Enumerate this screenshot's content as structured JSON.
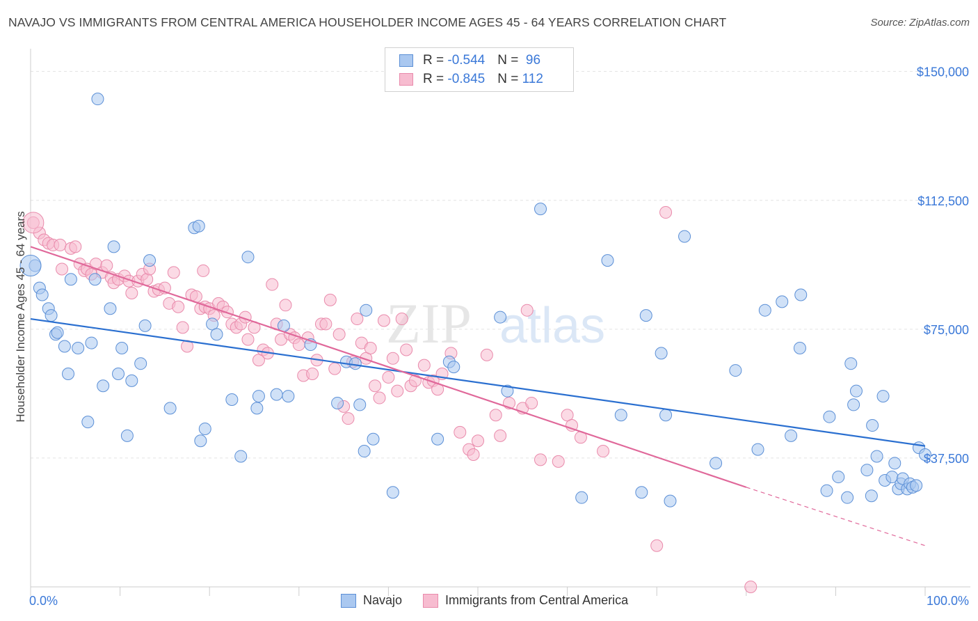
{
  "title": "NAVAJO VS IMMIGRANTS FROM CENTRAL AMERICA HOUSEHOLDER INCOME AGES 45 - 64 YEARS CORRELATION CHART",
  "source": "Source: ZipAtlas.com",
  "watermark": {
    "zip": "ZIP",
    "atlas": "atlas"
  },
  "colors": {
    "navajo_fill": "#aac8f0",
    "navajo_stroke": "#5b8fd6",
    "navajo_line": "#2a6fd0",
    "central_fill": "#f7bcd0",
    "central_stroke": "#e98aab",
    "central_line": "#e0689a",
    "axis_label": "#3a78d8"
  },
  "legend": {
    "rows": [
      {
        "r_label": "R = ",
        "r_value": "-0.544",
        "n_label": "N = ",
        "n_value": " 96"
      },
      {
        "r_label": "R = ",
        "r_value": "-0.845",
        "n_label": "N = ",
        "n_value": "112"
      }
    ]
  },
  "bottom_legend": [
    "Navajo",
    "Immigrants from Central America"
  ],
  "chart_data": {
    "type": "scatter",
    "title": "NAVAJO VS IMMIGRANTS FROM CENTRAL AMERICA HOUSEHOLDER INCOME AGES 45 - 64 YEARS CORRELATION CHART",
    "xlabel": "",
    "ylabel": "Householder Income Ages 45 - 64 years",
    "xlim": [
      0,
      100
    ],
    "ylim": [
      0,
      155000
    ],
    "x_tick_labels": [
      "0.0%",
      "100.0%"
    ],
    "y_ticks": [
      37500,
      75000,
      112500,
      150000
    ],
    "y_tick_labels": [
      "$37,500",
      "$75,000",
      "$112,500",
      "$150,000"
    ],
    "grid": true,
    "series": [
      {
        "name": "Navajo",
        "r": -0.544,
        "n": 96,
        "trend": {
          "x0": 0,
          "y0": 78000,
          "x1": 100,
          "y1": 41000
        },
        "points": [
          [
            0.5,
            93500
          ],
          [
            1,
            87000
          ],
          [
            1.3,
            85000
          ],
          [
            2,
            81000
          ],
          [
            2.3,
            79000
          ],
          [
            2.8,
            73500
          ],
          [
            3,
            74000
          ],
          [
            3.8,
            70000
          ],
          [
            4.2,
            62000
          ],
          [
            5.3,
            69500
          ],
          [
            6.4,
            48000
          ],
          [
            6.8,
            71000
          ],
          [
            7.5,
            142000
          ],
          [
            8.1,
            58500
          ],
          [
            8.9,
            81000
          ],
          [
            9.3,
            99000
          ],
          [
            9.8,
            62000
          ],
          [
            10.2,
            69500
          ],
          [
            10.8,
            44000
          ],
          [
            11.3,
            60000
          ],
          [
            12.3,
            65000
          ],
          [
            12.8,
            76000
          ],
          [
            13.3,
            95000
          ],
          [
            15.6,
            52000
          ],
          [
            18.3,
            104500
          ],
          [
            18.8,
            105000
          ],
          [
            19,
            42500
          ],
          [
            19.5,
            46000
          ],
          [
            20.3,
            76500
          ],
          [
            20.8,
            73500
          ],
          [
            22.5,
            54500
          ],
          [
            23.5,
            38000
          ],
          [
            24.3,
            96000
          ],
          [
            25.3,
            52000
          ],
          [
            25.5,
            55500
          ],
          [
            27.5,
            56000
          ],
          [
            28.3,
            76000
          ],
          [
            28.8,
            55500
          ],
          [
            31.3,
            70500
          ],
          [
            34.3,
            53500
          ],
          [
            35.3,
            65500
          ],
          [
            36.3,
            65000
          ],
          [
            36.8,
            53000
          ],
          [
            37.3,
            39500
          ],
          [
            37.5,
            80500
          ],
          [
            38.3,
            43000
          ],
          [
            40.5,
            27500
          ],
          [
            45.5,
            43000
          ],
          [
            46.8,
            65500
          ],
          [
            47.3,
            64000
          ],
          [
            52.5,
            78500
          ],
          [
            53.3,
            57000
          ],
          [
            57,
            110000
          ],
          [
            61.6,
            26000
          ],
          [
            64.5,
            95000
          ],
          [
            66,
            50000
          ],
          [
            68.3,
            27500
          ],
          [
            68.8,
            79000
          ],
          [
            70.5,
            68000
          ],
          [
            71,
            50000
          ],
          [
            71.5,
            25000
          ],
          [
            73.1,
            102000
          ],
          [
            76.6,
            36000
          ],
          [
            78.8,
            63000
          ],
          [
            81.3,
            40000
          ],
          [
            82.1,
            80500
          ],
          [
            84,
            83000
          ],
          [
            85,
            44000
          ],
          [
            86,
            69500
          ],
          [
            86.1,
            85000
          ],
          [
            89,
            28000
          ],
          [
            89.3,
            49500
          ],
          [
            90.3,
            32000
          ],
          [
            91.3,
            26000
          ],
          [
            91.7,
            65000
          ],
          [
            92,
            53000
          ],
          [
            92.3,
            57000
          ],
          [
            93.5,
            34000
          ],
          [
            94,
            26500
          ],
          [
            94.1,
            47000
          ],
          [
            94.6,
            38000
          ],
          [
            95.3,
            55500
          ],
          [
            95.5,
            31000
          ],
          [
            96.3,
            32000
          ],
          [
            96.6,
            36000
          ],
          [
            97,
            28500
          ],
          [
            97.3,
            30000
          ],
          [
            97.5,
            31500
          ],
          [
            98,
            28500
          ],
          [
            98.3,
            30000
          ],
          [
            98.6,
            29000
          ],
          [
            99,
            29500
          ],
          [
            99.3,
            40500
          ],
          [
            100,
            38500
          ],
          [
            7.2,
            89500
          ],
          [
            4.5,
            89500
          ]
        ],
        "big_point": [
          0,
          93500
        ]
      },
      {
        "name": "Immigrants from Central America",
        "r": -0.845,
        "n": 112,
        "trend": {
          "x0": 0,
          "y0": 99000,
          "x1": 80,
          "y1": 29000
        },
        "trend_dashed_to": {
          "x": 100,
          "y": 12000
        },
        "points": [
          [
            0.3,
            106000
          ],
          [
            1,
            103000
          ],
          [
            1.5,
            101000
          ],
          [
            2,
            100000
          ],
          [
            2.5,
            99500
          ],
          [
            3.3,
            99500
          ],
          [
            3.5,
            92500
          ],
          [
            4.5,
            98500
          ],
          [
            5,
            99000
          ],
          [
            5.5,
            94000
          ],
          [
            6,
            92000
          ],
          [
            6.3,
            92500
          ],
          [
            6.8,
            91000
          ],
          [
            7.3,
            94000
          ],
          [
            8,
            91500
          ],
          [
            8.5,
            93500
          ],
          [
            9.0,
            90000
          ],
          [
            9.3,
            88500
          ],
          [
            9.8,
            89500
          ],
          [
            10.5,
            90500
          ],
          [
            11,
            89000
          ],
          [
            11.3,
            85500
          ],
          [
            12,
            89000
          ],
          [
            12.5,
            91000
          ],
          [
            13,
            89500
          ],
          [
            13.3,
            92500
          ],
          [
            13.8,
            86000
          ],
          [
            14.3,
            86500
          ],
          [
            15,
            87000
          ],
          [
            15.5,
            82500
          ],
          [
            16,
            91500
          ],
          [
            16.5,
            81500
          ],
          [
            17,
            75500
          ],
          [
            17.5,
            70000
          ],
          [
            18,
            85000
          ],
          [
            18.5,
            84500
          ],
          [
            19,
            81000
          ],
          [
            19.3,
            92000
          ],
          [
            19.5,
            81500
          ],
          [
            20,
            81000
          ],
          [
            20.5,
            79000
          ],
          [
            21,
            82500
          ],
          [
            21.5,
            81500
          ],
          [
            22,
            80000
          ],
          [
            22.5,
            76500
          ],
          [
            23,
            75500
          ],
          [
            23.5,
            76500
          ],
          [
            24,
            78500
          ],
          [
            24.3,
            72000
          ],
          [
            25,
            75500
          ],
          [
            25.5,
            66000
          ],
          [
            26,
            69000
          ],
          [
            26.5,
            68000
          ],
          [
            27,
            88000
          ],
          [
            27.5,
            76500
          ],
          [
            28,
            72000
          ],
          [
            28.5,
            82000
          ],
          [
            29,
            73500
          ],
          [
            29.5,
            72500
          ],
          [
            30,
            70500
          ],
          [
            30.5,
            61500
          ],
          [
            31,
            72500
          ],
          [
            31.5,
            62000
          ],
          [
            32,
            66000
          ],
          [
            32.5,
            76500
          ],
          [
            33,
            76500
          ],
          [
            33.5,
            83500
          ],
          [
            34,
            63500
          ],
          [
            34.5,
            73500
          ],
          [
            35,
            52500
          ],
          [
            35.5,
            49000
          ],
          [
            36,
            65500
          ],
          [
            36.5,
            78000
          ],
          [
            37,
            71000
          ],
          [
            37.5,
            66500
          ],
          [
            38,
            69500
          ],
          [
            38.5,
            58500
          ],
          [
            39,
            55000
          ],
          [
            39.5,
            77500
          ],
          [
            40,
            61000
          ],
          [
            40.5,
            66500
          ],
          [
            41,
            57000
          ],
          [
            41.5,
            78000
          ],
          [
            42,
            69000
          ],
          [
            42.5,
            58500
          ],
          [
            43,
            60000
          ],
          [
            44,
            64500
          ],
          [
            44.5,
            59500
          ],
          [
            45,
            60000
          ],
          [
            45.5,
            57500
          ],
          [
            46,
            62000
          ],
          [
            47,
            68000
          ],
          [
            48,
            45000
          ],
          [
            49,
            40000
          ],
          [
            49.5,
            38500
          ],
          [
            50,
            42500
          ],
          [
            51,
            67500
          ],
          [
            52,
            50000
          ],
          [
            52.5,
            44000
          ],
          [
            53.5,
            53500
          ],
          [
            55,
            52000
          ],
          [
            55.5,
            80500
          ],
          [
            56,
            53500
          ],
          [
            57,
            37000
          ],
          [
            59,
            36500
          ],
          [
            60,
            50000
          ],
          [
            60.5,
            47000
          ],
          [
            61.5,
            43500
          ],
          [
            64,
            39500
          ],
          [
            70,
            12000
          ],
          [
            71,
            109000
          ],
          [
            80.5,
            0
          ]
        ],
        "big_point": [
          0.3,
          106000
        ]
      }
    ]
  }
}
